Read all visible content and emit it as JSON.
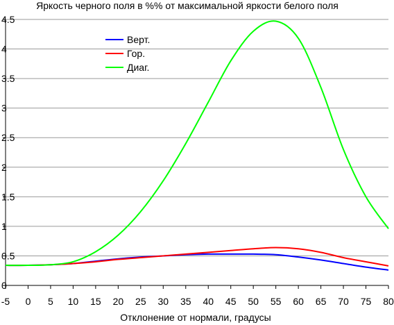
{
  "chart_data": {
    "type": "line",
    "title": "Яркость черного поля в %% от максимальной яркости белого поля",
    "xlabel": "Отклонение от нормали, градусы",
    "ylabel": "",
    "xlim": [
      -5,
      80
    ],
    "ylim": [
      0,
      4.5
    ],
    "xticks": [
      "-5",
      "0",
      "5",
      "10",
      "15",
      "20",
      "25",
      "30",
      "35",
      "40",
      "45",
      "50",
      "55",
      "60",
      "65",
      "70",
      "75",
      "80"
    ],
    "yticks": [
      "0",
      "0.5",
      "1",
      "1.5",
      "2",
      "2.5",
      "3",
      "3.5",
      "4",
      "4.5"
    ],
    "grid": "horizontal",
    "legend_position": "top-left",
    "x": [
      -5,
      0,
      5,
      10,
      15,
      20,
      25,
      30,
      35,
      40,
      45,
      50,
      55,
      60,
      65,
      70,
      75,
      80
    ],
    "series": [
      {
        "name": "Верт.",
        "color": "#0000ff",
        "values": [
          0.34,
          0.34,
          0.35,
          0.37,
          0.41,
          0.45,
          0.48,
          0.5,
          0.52,
          0.53,
          0.53,
          0.53,
          0.52,
          0.48,
          0.43,
          0.37,
          0.31,
          0.26
        ]
      },
      {
        "name": "Гор.",
        "color": "#ff0000",
        "values": [
          0.34,
          0.34,
          0.35,
          0.37,
          0.4,
          0.44,
          0.47,
          0.5,
          0.53,
          0.56,
          0.59,
          0.62,
          0.64,
          0.62,
          0.56,
          0.47,
          0.4,
          0.33
        ]
      },
      {
        "name": "Диаг.",
        "color": "#00ff00",
        "values": [
          0.34,
          0.34,
          0.35,
          0.4,
          0.57,
          0.85,
          1.25,
          1.77,
          2.4,
          3.1,
          3.8,
          4.3,
          4.47,
          4.18,
          3.35,
          2.3,
          1.5,
          0.96
        ]
      }
    ]
  }
}
